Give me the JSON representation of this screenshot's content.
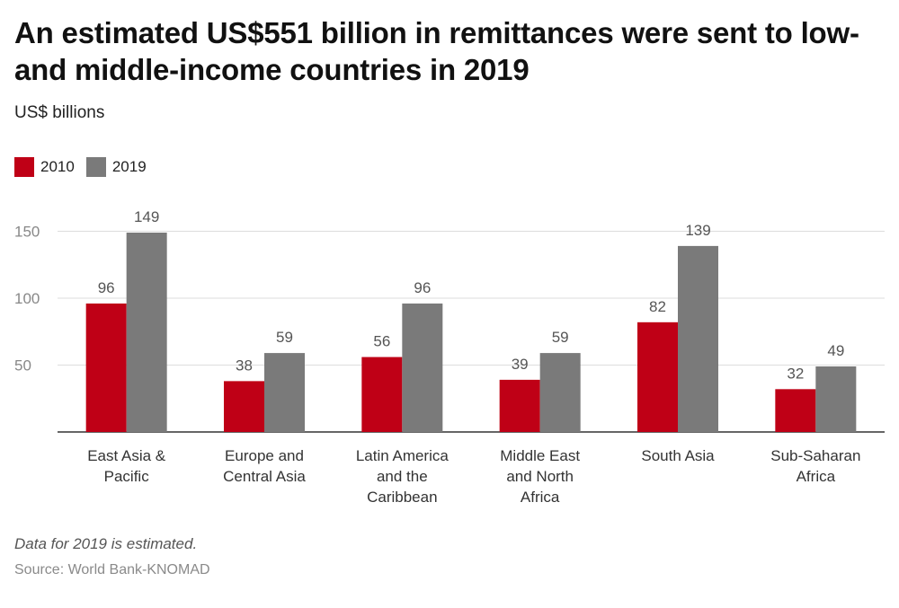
{
  "title": "An estimated US$551 billion in remittances were sent to low- and middle-income countries in 2019",
  "subtitle": "US$ billions",
  "note": "Data for 2019 is estimated.",
  "source": "Source: World Bank-KNOMAD",
  "colors": {
    "series_2010": "#bf0016",
    "series_2019": "#7a7a7a",
    "grid": "#dddddd",
    "axis": "#333333",
    "tick_text": "#888888",
    "value_text": "#555555"
  },
  "chart_data": {
    "type": "bar",
    "title": "An estimated US$551 billion in remittances were sent to low- and middle-income countries in 2019",
    "ylabel": "US$ billions",
    "categories": [
      [
        "East Asia &",
        "Pacific"
      ],
      [
        "Europe and",
        "Central Asia"
      ],
      [
        "Latin America",
        "and the",
        "Caribbean"
      ],
      [
        "Middle East",
        "and North",
        "Africa"
      ],
      [
        "South Asia"
      ],
      [
        "Sub-Saharan",
        "Africa"
      ]
    ],
    "series": [
      {
        "name": "2010",
        "values": [
          96,
          38,
          56,
          39,
          82,
          32
        ]
      },
      {
        "name": "2019",
        "values": [
          149,
          59,
          96,
          59,
          139,
          49
        ]
      }
    ],
    "yticks": [
      50,
      100,
      150
    ],
    "ylim": [
      0,
      160
    ],
    "grid": true,
    "legend_position": "top-left"
  }
}
